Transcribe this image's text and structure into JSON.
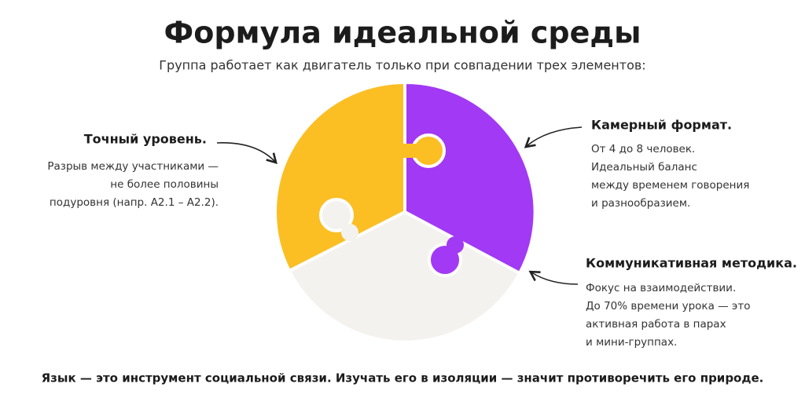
{
  "header": {
    "title": "Формула идеальной среды",
    "subtitle": "Группа работает как двигатель только при совпадении трех элементов:"
  },
  "callouts": [
    {
      "title": "Точный уровень.",
      "lines": [
        "Разрыв между участниками —",
        "не более половины",
        "подуровня (напр. A2.1 – A2.2)."
      ]
    },
    {
      "title": "Камерный формат.",
      "lines": [
        "От 4 до 8 человек.",
        "Идеальный баланс",
        "между временем говорения",
        "и разнообразием."
      ]
    },
    {
      "title": "Коммуникативная методика.",
      "lines": [
        "Фокус на взаимодействии.",
        "До 70% времени урока — это",
        "активная работа в парах",
        "и мини-группах."
      ]
    }
  ],
  "footer": "Язык — это инструмент социальной связи. Изучать его в изоляции — значит противоречить его природе."
}
